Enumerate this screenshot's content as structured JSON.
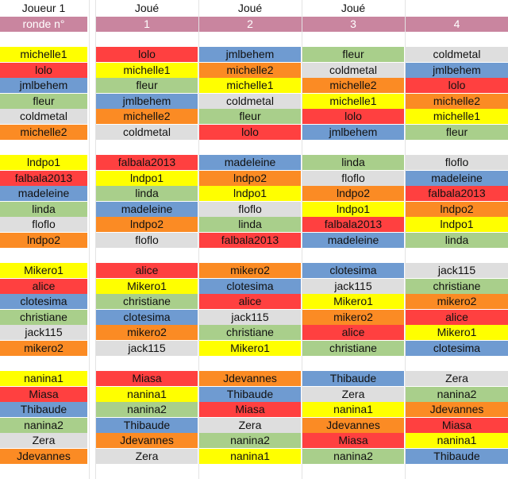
{
  "header": {
    "player_label": "Joueur 1",
    "played_label": "Joué",
    "round_label": "ronde n°",
    "rounds": [
      "1",
      "2",
      "3",
      "4"
    ]
  },
  "colors": {
    "yellow": "#ffff00",
    "red": "#ff4040",
    "blue": "#6f9bd1",
    "green": "#a9cf8b",
    "gray": "#dedede",
    "orange": "#fb8b24",
    "header_pink": "#c9859f"
  },
  "groups": [
    {
      "players": [
        {
          "name": "michelle1",
          "color": "yellow"
        },
        {
          "name": "lolo",
          "color": "red"
        },
        {
          "name": "jmlbehem",
          "color": "blue"
        },
        {
          "name": "fleur",
          "color": "green"
        },
        {
          "name": "coldmetal",
          "color": "gray"
        },
        {
          "name": "michelle2",
          "color": "orange"
        }
      ],
      "rounds": [
        [
          [
            {
              "name": "lolo",
              "color": "red"
            },
            {
              "name": "jmlbehem",
              "color": "blue"
            },
            {
              "name": "fleur",
              "color": "green"
            },
            {
              "name": "coldmetal",
              "color": "gray"
            }
          ],
          [
            {
              "name": "michelle1",
              "color": "yellow"
            },
            {
              "name": "michelle2",
              "color": "orange"
            },
            {
              "name": "coldmetal",
              "color": "gray"
            },
            {
              "name": "jmlbehem",
              "color": "blue"
            }
          ],
          [
            {
              "name": "fleur",
              "color": "green"
            },
            {
              "name": "michelle1",
              "color": "yellow"
            },
            {
              "name": "michelle2",
              "color": "orange"
            },
            {
              "name": "lolo",
              "color": "red"
            }
          ],
          [
            {
              "name": "jmlbehem",
              "color": "blue"
            },
            {
              "name": "coldmetal",
              "color": "gray"
            },
            {
              "name": "michelle1",
              "color": "yellow"
            },
            {
              "name": "michelle2",
              "color": "orange"
            }
          ],
          [
            {
              "name": "michelle2",
              "color": "orange"
            },
            {
              "name": "fleur",
              "color": "green"
            },
            {
              "name": "lolo",
              "color": "red"
            },
            {
              "name": "michelle1",
              "color": "yellow"
            }
          ],
          [
            {
              "name": "coldmetal",
              "color": "gray"
            },
            {
              "name": "lolo",
              "color": "red"
            },
            {
              "name": "jmlbehem",
              "color": "blue"
            },
            {
              "name": "fleur",
              "color": "green"
            }
          ]
        ]
      ]
    },
    {
      "players": [
        {
          "name": "lndpo1",
          "color": "yellow"
        },
        {
          "name": "falbala2013",
          "color": "red"
        },
        {
          "name": "madeleine",
          "color": "blue"
        },
        {
          "name": "linda",
          "color": "green"
        },
        {
          "name": "floflo",
          "color": "gray"
        },
        {
          "name": "lndpo2",
          "color": "orange"
        }
      ],
      "rounds": [
        [
          [
            {
              "name": "falbala2013",
              "color": "red"
            },
            {
              "name": "madeleine",
              "color": "blue"
            },
            {
              "name": "linda",
              "color": "green"
            },
            {
              "name": "floflo",
              "color": "gray"
            }
          ],
          [
            {
              "name": "lndpo1",
              "color": "yellow"
            },
            {
              "name": "lndpo2",
              "color": "orange"
            },
            {
              "name": "floflo",
              "color": "gray"
            },
            {
              "name": "madeleine",
              "color": "blue"
            }
          ],
          [
            {
              "name": "linda",
              "color": "green"
            },
            {
              "name": "lndpo1",
              "color": "yellow"
            },
            {
              "name": "lndpo2",
              "color": "orange"
            },
            {
              "name": "falbala2013",
              "color": "red"
            }
          ],
          [
            {
              "name": "madeleine",
              "color": "blue"
            },
            {
              "name": "floflo",
              "color": "gray"
            },
            {
              "name": "lndpo1",
              "color": "yellow"
            },
            {
              "name": "lndpo2",
              "color": "orange"
            }
          ],
          [
            {
              "name": "lndpo2",
              "color": "orange"
            },
            {
              "name": "linda",
              "color": "green"
            },
            {
              "name": "falbala2013",
              "color": "red"
            },
            {
              "name": "lndpo1",
              "color": "yellow"
            }
          ],
          [
            {
              "name": "floflo",
              "color": "gray"
            },
            {
              "name": "falbala2013",
              "color": "red"
            },
            {
              "name": "madeleine",
              "color": "blue"
            },
            {
              "name": "linda",
              "color": "green"
            }
          ]
        ]
      ]
    },
    {
      "players": [
        {
          "name": "Mikero1",
          "color": "yellow"
        },
        {
          "name": "alice",
          "color": "red"
        },
        {
          "name": "clotesima",
          "color": "blue"
        },
        {
          "name": "christiane",
          "color": "green"
        },
        {
          "name": "jack115",
          "color": "gray"
        },
        {
          "name": "mikero2",
          "color": "orange"
        }
      ],
      "rounds": [
        [
          [
            {
              "name": "alice",
              "color": "red"
            },
            {
              "name": "mikero2",
              "color": "orange"
            },
            {
              "name": "clotesima",
              "color": "blue"
            },
            {
              "name": "jack115",
              "color": "gray"
            }
          ],
          [
            {
              "name": "Mikero1",
              "color": "yellow"
            },
            {
              "name": "clotesima",
              "color": "blue"
            },
            {
              "name": "jack115",
              "color": "gray"
            },
            {
              "name": "christiane",
              "color": "green"
            }
          ],
          [
            {
              "name": "christiane",
              "color": "green"
            },
            {
              "name": "alice",
              "color": "red"
            },
            {
              "name": "Mikero1",
              "color": "yellow"
            },
            {
              "name": "mikero2",
              "color": "orange"
            }
          ],
          [
            {
              "name": "clotesima",
              "color": "blue"
            },
            {
              "name": "jack115",
              "color": "gray"
            },
            {
              "name": "mikero2",
              "color": "orange"
            },
            {
              "name": "alice",
              "color": "red"
            }
          ],
          [
            {
              "name": "mikero2",
              "color": "orange"
            },
            {
              "name": "christiane",
              "color": "green"
            },
            {
              "name": "alice",
              "color": "red"
            },
            {
              "name": "Mikero1",
              "color": "yellow"
            }
          ],
          [
            {
              "name": "jack115",
              "color": "gray"
            },
            {
              "name": "Mikero1",
              "color": "yellow"
            },
            {
              "name": "christiane",
              "color": "green"
            },
            {
              "name": "clotesima",
              "color": "blue"
            }
          ]
        ]
      ]
    },
    {
      "players": [
        {
          "name": "nanina1",
          "color": "yellow"
        },
        {
          "name": "Miasa",
          "color": "red"
        },
        {
          "name": "Thibaude",
          "color": "blue"
        },
        {
          "name": "nanina2",
          "color": "green"
        },
        {
          "name": "Zera",
          "color": "gray"
        },
        {
          "name": "Jdevannes",
          "color": "orange"
        }
      ],
      "rounds": [
        [
          [
            {
              "name": "Miasa",
              "color": "red"
            },
            {
              "name": "Jdevannes",
              "color": "orange"
            },
            {
              "name": "Thibaude",
              "color": "blue"
            },
            {
              "name": "Zera",
              "color": "gray"
            }
          ],
          [
            {
              "name": "nanina1",
              "color": "yellow"
            },
            {
              "name": "Thibaude",
              "color": "blue"
            },
            {
              "name": "Zera",
              "color": "gray"
            },
            {
              "name": "nanina2",
              "color": "green"
            }
          ],
          [
            {
              "name": "nanina2",
              "color": "green"
            },
            {
              "name": "Miasa",
              "color": "red"
            },
            {
              "name": "nanina1",
              "color": "yellow"
            },
            {
              "name": "Jdevannes",
              "color": "orange"
            }
          ],
          [
            {
              "name": "Thibaude",
              "color": "blue"
            },
            {
              "name": "Zera",
              "color": "gray"
            },
            {
              "name": "Jdevannes",
              "color": "orange"
            },
            {
              "name": "Miasa",
              "color": "red"
            }
          ],
          [
            {
              "name": "Jdevannes",
              "color": "orange"
            },
            {
              "name": "nanina2",
              "color": "green"
            },
            {
              "name": "Miasa",
              "color": "red"
            },
            {
              "name": "nanina1",
              "color": "yellow"
            }
          ],
          [
            {
              "name": "Zera",
              "color": "gray"
            },
            {
              "name": "nanina1",
              "color": "yellow"
            },
            {
              "name": "nanina2",
              "color": "green"
            },
            {
              "name": "Thibaude",
              "color": "blue"
            }
          ]
        ]
      ]
    }
  ]
}
